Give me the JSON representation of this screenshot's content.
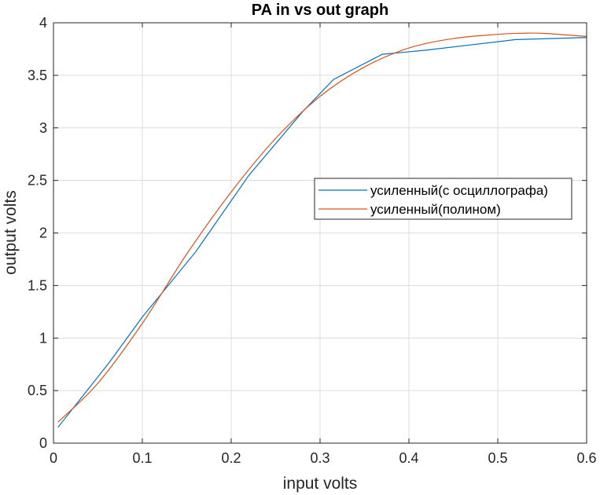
{
  "chart_data": {
    "type": "line",
    "title": "PA in vs out graph",
    "xlabel": "input volts",
    "ylabel": "output volts",
    "xlim": [
      0,
      0.6
    ],
    "ylim": [
      0,
      4
    ],
    "xticks": [
      0,
      0.1,
      0.2,
      0.3,
      0.4,
      0.5,
      0.6
    ],
    "xtick_labels": [
      "0",
      "0.1",
      "0.2",
      "0.3",
      "0.4",
      "0.5",
      "0.6"
    ],
    "yticks": [
      0,
      0.5,
      1,
      1.5,
      2,
      2.5,
      3,
      3.5,
      4
    ],
    "ytick_labels": [
      "0",
      "0.5",
      "1",
      "1.5",
      "2",
      "2.5",
      "3",
      "3.5",
      "4"
    ],
    "grid": true,
    "legend_position": "center-right",
    "series": [
      {
        "name": "усиленный(с осциллографа)",
        "color": "#0072BD",
        "x": [
          0.005,
          0.063,
          0.1,
          0.16,
          0.22,
          0.28,
          0.315,
          0.37,
          0.42,
          0.47,
          0.52,
          0.6
        ],
        "y": [
          0.15,
          0.77,
          1.2,
          1.82,
          2.55,
          3.15,
          3.46,
          3.7,
          3.74,
          3.79,
          3.84,
          3.86
        ]
      },
      {
        "name": "усиленный(полином)",
        "color": "#D95319",
        "x": [
          0.005,
          0.05,
          0.1,
          0.15,
          0.2,
          0.25,
          0.3,
          0.35,
          0.4,
          0.45,
          0.5,
          0.525,
          0.55,
          0.6
        ],
        "y": [
          0.2,
          0.57,
          1.14,
          1.8,
          2.39,
          2.9,
          3.3,
          3.58,
          3.76,
          3.85,
          3.89,
          3.9,
          3.9,
          3.87
        ]
      }
    ]
  }
}
